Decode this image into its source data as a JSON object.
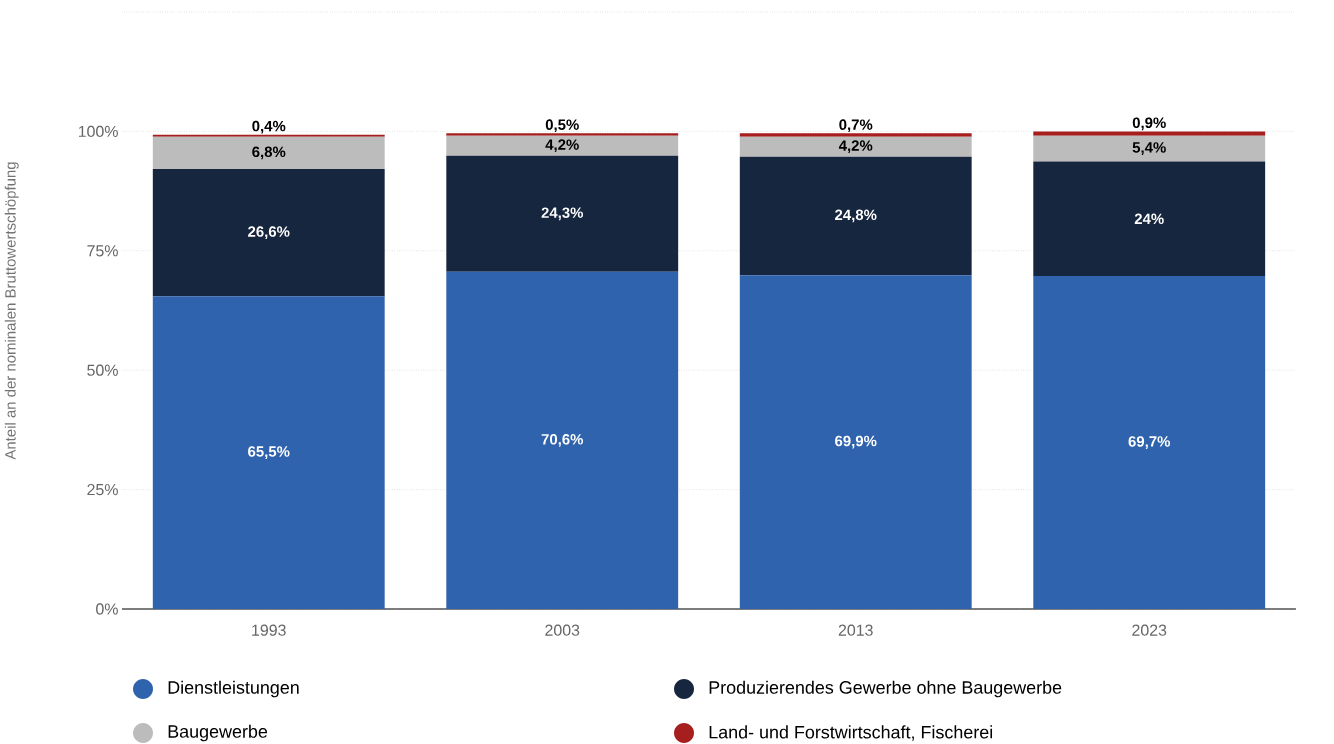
{
  "chart_data": {
    "type": "bar",
    "stacked": true,
    "ylabel": "Anteil an der nominalen Bruttowertschöpfung",
    "categories": [
      "1993",
      "2003",
      "2013",
      "2023"
    ],
    "series": [
      {
        "name": "Dienstleistungen",
        "color": "#3063ad",
        "values": [
          65.5,
          70.6,
          69.9,
          69.7
        ],
        "value_labels": [
          "65,5%",
          "70,6%",
          "69,9%",
          "69,7%"
        ]
      },
      {
        "name": "Produzierendes Gewerbe ohne Baugewerbe",
        "color": "#17263f",
        "values": [
          26.6,
          24.3,
          24.8,
          24
        ],
        "value_labels": [
          "26,6%",
          "24,3%",
          "24,8%",
          "24%"
        ]
      },
      {
        "name": "Baugewerbe",
        "color": "#bcbcbc",
        "values": [
          6.8,
          4.2,
          4.2,
          5.4
        ],
        "value_labels": [
          "6,8%",
          "4,2%",
          "4,2%",
          "5,4%"
        ]
      },
      {
        "name": "Land- und Forstwirtschaft, Fischerei",
        "color": "#a61e1e",
        "values": [
          0.4,
          0.5,
          0.7,
          0.9
        ],
        "value_labels": [
          "0,4%",
          "0,5%",
          "0,7%",
          "0,9%"
        ]
      }
    ],
    "ylim": [
      0,
      125
    ],
    "yticks": [
      {
        "value": 0,
        "label": "0%"
      },
      {
        "value": 25,
        "label": "25%"
      },
      {
        "value": 50,
        "label": "50%"
      },
      {
        "value": 75,
        "label": "75%"
      },
      {
        "value": 100,
        "label": "100%"
      },
      {
        "value": 125,
        "label": null
      }
    ],
    "grid": "y",
    "legend": "bottom"
  }
}
